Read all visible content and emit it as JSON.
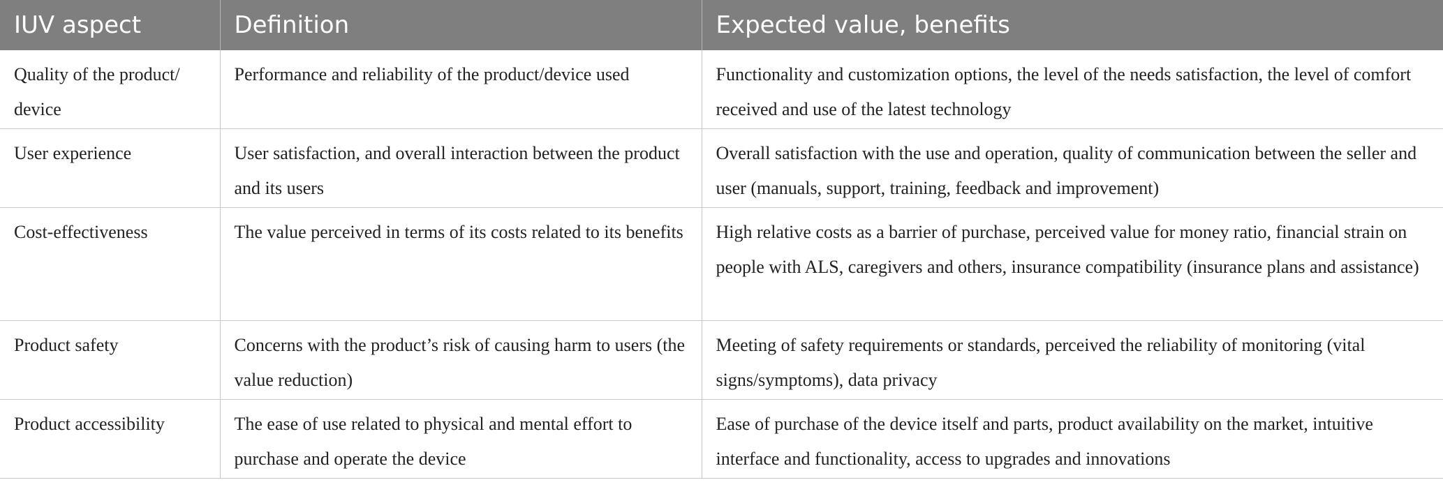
{
  "table": {
    "headers": [
      "IUV aspect",
      "Definition",
      "Expected value, benefits"
    ],
    "rows": [
      {
        "aspect": "Quality of the product/ device",
        "definition": "Performance and reliability of the product/device used",
        "benefits": "Functionality and customization options, the level of the needs satisfaction, the level of comfort received and use of the latest technology"
      },
      {
        "aspect": "User experience",
        "definition": "User satisfaction, and overall interaction between the product and its users",
        "benefits": "Overall satisfaction with the use and operation, quality of communication between the seller and user (manuals, support, training, feedback and improvement)"
      },
      {
        "aspect": "Cost-effectiveness",
        "definition": "The value perceived in terms of its costs related to its benefits",
        "benefits": "High relative costs as a barrier of purchase, perceived value for money ratio, financial strain on people with ALS, caregivers and others, insurance compatibility (insurance plans and assistance)"
      },
      {
        "aspect": "Product safety",
        "definition": "Concerns with the product’s risk of causing harm to users (the value reduction)",
        "benefits": "Meeting of safety requirements or standards, perceived the reliability of monitoring (vital signs/symptoms), data privacy"
      },
      {
        "aspect": "Product accessibility",
        "definition": "The ease of use related to physical and mental effort to purchase and operate the device",
        "benefits": "Ease of purchase of the device itself and parts, product availability on the market, intuitive interface and functionality, access to upgrades and innovations"
      }
    ]
  },
  "colors": {
    "header_bg": "#7f7f7f",
    "header_text": "#ffffff",
    "body_text": "#222222",
    "grid_line": "#c8c8c8"
  }
}
